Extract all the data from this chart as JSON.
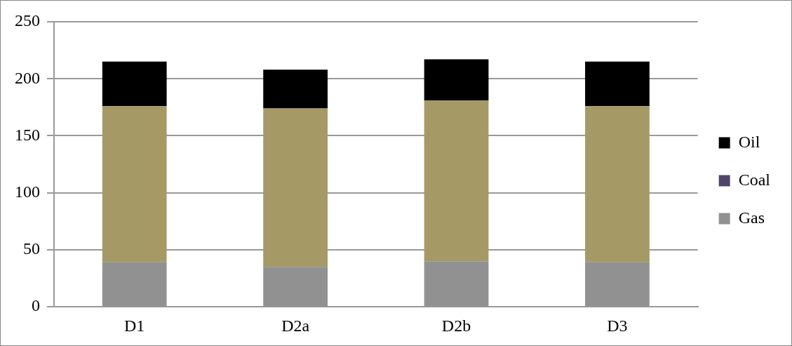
{
  "chart_data": {
    "type": "bar",
    "stacked": true,
    "categories": [
      "D1",
      "D2a",
      "D2b",
      "D3"
    ],
    "series": [
      {
        "name": "Gas",
        "color": "#919191",
        "values": [
          39,
          35,
          40,
          39
        ]
      },
      {
        "name": "Coal",
        "color": "#524468",
        "values": [
          0,
          0,
          0,
          0
        ]
      },
      {
        "color": "#a59966",
        "values": [
          137,
          139,
          141,
          137
        ]
      },
      {
        "name": "Oil",
        "color": "#000000",
        "values": [
          39,
          34,
          36,
          39
        ]
      }
    ],
    "ylim": [
      0,
      250
    ],
    "yticks": [
      0,
      50,
      100,
      150,
      200,
      250
    ],
    "grid": "y",
    "legend": "right"
  }
}
